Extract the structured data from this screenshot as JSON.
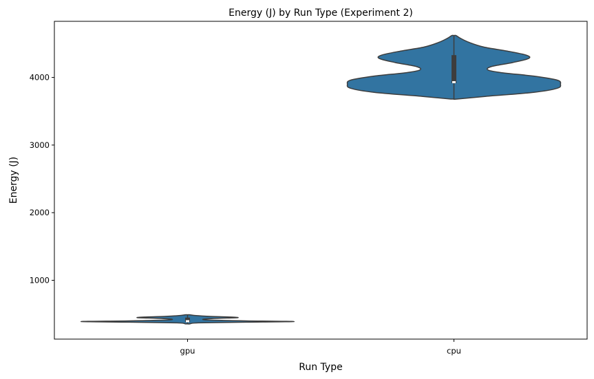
{
  "chart_data": {
    "type": "violin",
    "title": "Energy (J) by Run Type (Experiment 2)",
    "xlabel": "Run Type",
    "ylabel": "Energy (J)",
    "categories": [
      "gpu",
      "cpu"
    ],
    "yticks": [
      1000,
      2000,
      3000,
      4000
    ],
    "ylim": [
      130,
      4830
    ],
    "grid": false,
    "legend": "none",
    "color": "#3274a1",
    "edge_color": "#3d3d3d",
    "violins": [
      {
        "category": "gpu",
        "min": 355,
        "q1": 380,
        "median": 395,
        "q3": 448,
        "max": 490,
        "profile": [
          [
            355,
            0.02
          ],
          [
            370,
            0.1
          ],
          [
            380,
            0.55
          ],
          [
            390,
            1.0
          ],
          [
            400,
            0.55
          ],
          [
            412,
            0.2
          ],
          [
            425,
            0.15
          ],
          [
            437,
            0.28
          ],
          [
            447,
            0.47
          ],
          [
            457,
            0.4
          ],
          [
            467,
            0.2
          ],
          [
            478,
            0.08
          ],
          [
            490,
            0.02
          ]
        ]
      },
      {
        "category": "cpu",
        "min": 3680,
        "q1": 3915,
        "median": 3930,
        "q3": 4330,
        "max": 4620,
        "profile": [
          [
            3680,
            0.03
          ],
          [
            3720,
            0.3
          ],
          [
            3780,
            0.75
          ],
          [
            3840,
            0.97
          ],
          [
            3900,
            1.0
          ],
          [
            3960,
            0.97
          ],
          [
            4020,
            0.75
          ],
          [
            4070,
            0.45
          ],
          [
            4110,
            0.32
          ],
          [
            4160,
            0.35
          ],
          [
            4220,
            0.55
          ],
          [
            4280,
            0.7
          ],
          [
            4330,
            0.68
          ],
          [
            4390,
            0.5
          ],
          [
            4450,
            0.28
          ],
          [
            4520,
            0.14
          ],
          [
            4580,
            0.06
          ],
          [
            4620,
            0.02
          ]
        ]
      }
    ]
  }
}
